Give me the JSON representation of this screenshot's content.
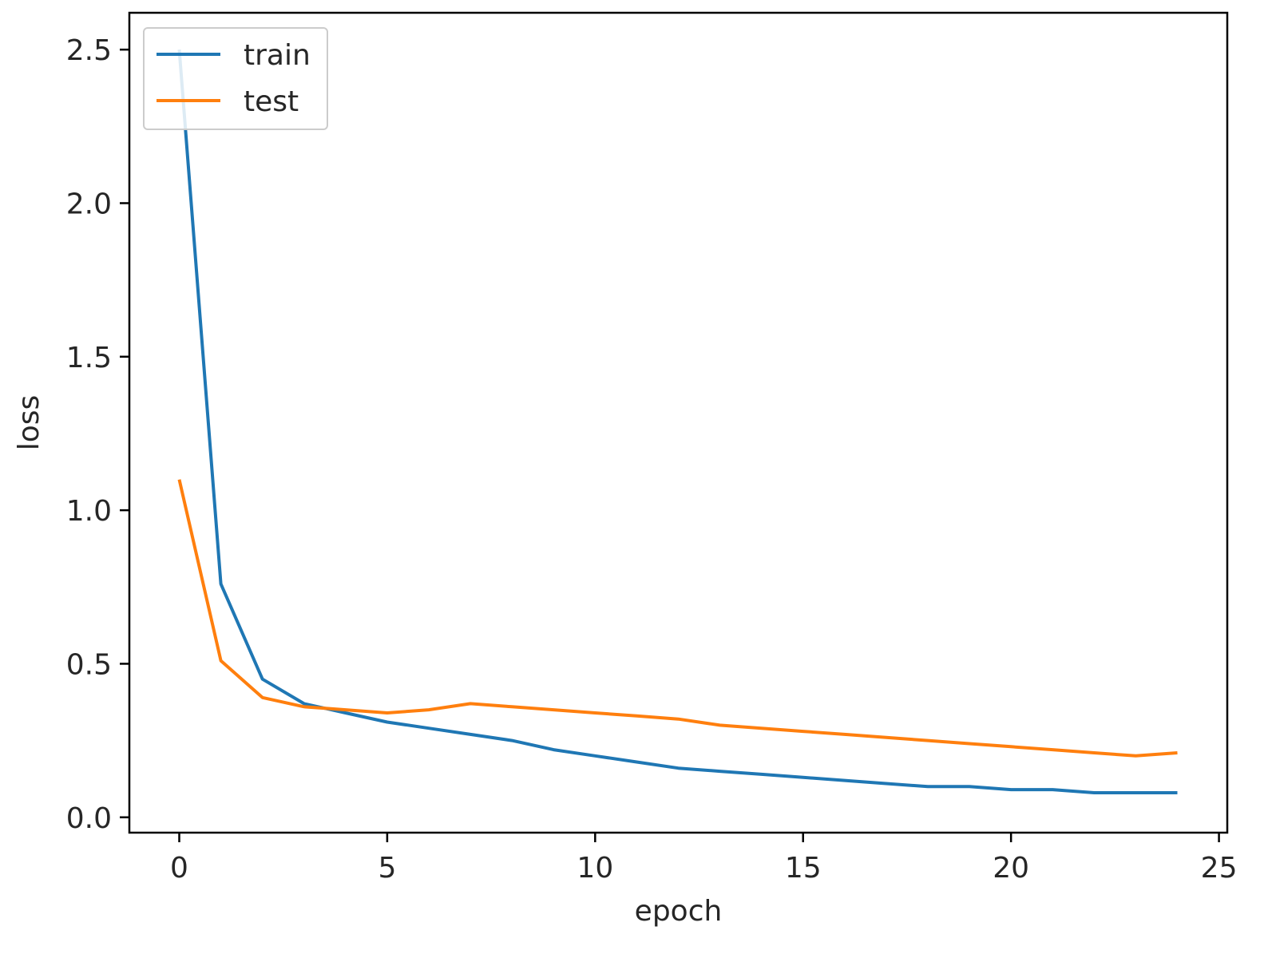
{
  "chart_data": {
    "type": "line",
    "title": "",
    "xlabel": "epoch",
    "ylabel": "loss",
    "xlim": [
      -1.2,
      25.2
    ],
    "ylim": [
      -0.05,
      2.62
    ],
    "xticks": [
      0,
      5,
      10,
      15,
      20,
      25
    ],
    "xtick_labels": [
      "0",
      "5",
      "10",
      "15",
      "20",
      "25"
    ],
    "yticks": [
      0.0,
      0.5,
      1.0,
      1.5,
      2.0,
      2.5
    ],
    "ytick_labels": [
      "0.0",
      "0.5",
      "1.0",
      "1.5",
      "2.0",
      "2.5"
    ],
    "grid": false,
    "legend_position": "top-left",
    "x": [
      0,
      1,
      2,
      3,
      4,
      5,
      6,
      7,
      8,
      9,
      10,
      11,
      12,
      13,
      14,
      15,
      16,
      17,
      18,
      19,
      20,
      21,
      22,
      23,
      24
    ],
    "series": [
      {
        "name": "train",
        "color": "#1f77b4",
        "values": [
          2.5,
          0.76,
          0.45,
          0.37,
          0.34,
          0.31,
          0.29,
          0.27,
          0.25,
          0.22,
          0.2,
          0.18,
          0.16,
          0.15,
          0.14,
          0.13,
          0.12,
          0.11,
          0.1,
          0.1,
          0.09,
          0.09,
          0.08,
          0.08,
          0.08
        ]
      },
      {
        "name": "test",
        "color": "#ff7f0e",
        "values": [
          1.1,
          0.51,
          0.39,
          0.36,
          0.35,
          0.34,
          0.35,
          0.37,
          0.36,
          0.35,
          0.34,
          0.33,
          0.32,
          0.3,
          0.29,
          0.28,
          0.27,
          0.26,
          0.25,
          0.24,
          0.23,
          0.22,
          0.21,
          0.2,
          0.21
        ]
      }
    ]
  }
}
